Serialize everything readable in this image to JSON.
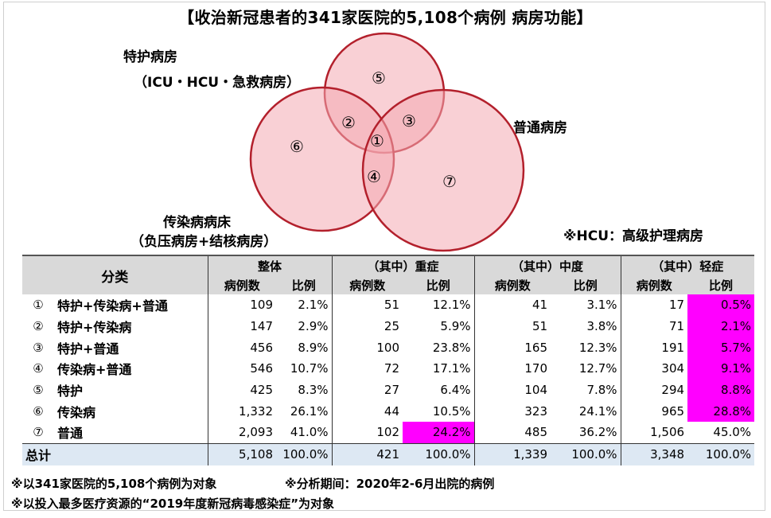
{
  "title": "【收治新冠患者的341家医院的5,108个病例 病房功能】",
  "venn": {
    "label_icu": "特护病房",
    "label_icu_sub": "（ICU・HCU・急救病房）",
    "label_general": "普通病房",
    "label_infect": "传染病病床",
    "label_infect_sub": "（负压病房+结核病房）",
    "region_nums": [
      "①",
      "②",
      "③",
      "④",
      "⑤",
      "⑥",
      "⑦"
    ],
    "colors": {
      "fill": "#f4aab3",
      "stroke": "#b3202c"
    }
  },
  "hcu_note": "※HCU：高级护理病房",
  "table": {
    "header": {
      "category": "分类",
      "groups": [
        "整体",
        "（其中）重症",
        "（其中）中度",
        "（其中）轻症"
      ],
      "count": "病例数",
      "ratio": "比例"
    },
    "rows": [
      {
        "mark": "①",
        "label": "特护+传染病+普通",
        "cells": [
          "109",
          "2.1%",
          "51",
          "12.1%",
          "41",
          "3.1%",
          "17",
          "0.5%"
        ]
      },
      {
        "mark": "②",
        "label": "特护+传染病",
        "cells": [
          "147",
          "2.9%",
          "25",
          "5.9%",
          "51",
          "3.8%",
          "71",
          "2.1%"
        ]
      },
      {
        "mark": "③",
        "label": "特护+普通",
        "cells": [
          "456",
          "8.9%",
          "100",
          "23.8%",
          "165",
          "12.3%",
          "191",
          "5.7%"
        ]
      },
      {
        "mark": "④",
        "label": "传染病+普通",
        "cells": [
          "546",
          "10.7%",
          "72",
          "17.1%",
          "170",
          "12.7%",
          "304",
          "9.1%"
        ]
      },
      {
        "mark": "⑤",
        "label": "特护",
        "cells": [
          "425",
          "8.3%",
          "27",
          "6.4%",
          "104",
          "7.8%",
          "294",
          "8.8%"
        ]
      },
      {
        "mark": "⑥",
        "label": "传染病",
        "cells": [
          "1,332",
          "26.1%",
          "44",
          "10.5%",
          "323",
          "24.1%",
          "965",
          "28.8%"
        ]
      },
      {
        "mark": "⑦",
        "label": "普通",
        "cells": [
          "2,093",
          "41.0%",
          "102",
          "24.2%",
          "485",
          "36.2%",
          "1,506",
          "45.0%"
        ]
      }
    ],
    "total": {
      "label": "总计",
      "cells": [
        "5,108",
        "100.0%",
        "421",
        "100.0%",
        "1,339",
        "100.0%",
        "3,348",
        "100.0%"
      ]
    },
    "highlight_color": "#ff00ff"
  },
  "notes": {
    "n1": "※以341家医院的5,108个病例为对象",
    "n2": "※分析期间：2020年2-6月出院的病例",
    "n3": "※以投入最多医疗资源的“2019年度新冠病毒感染症”为对象"
  }
}
